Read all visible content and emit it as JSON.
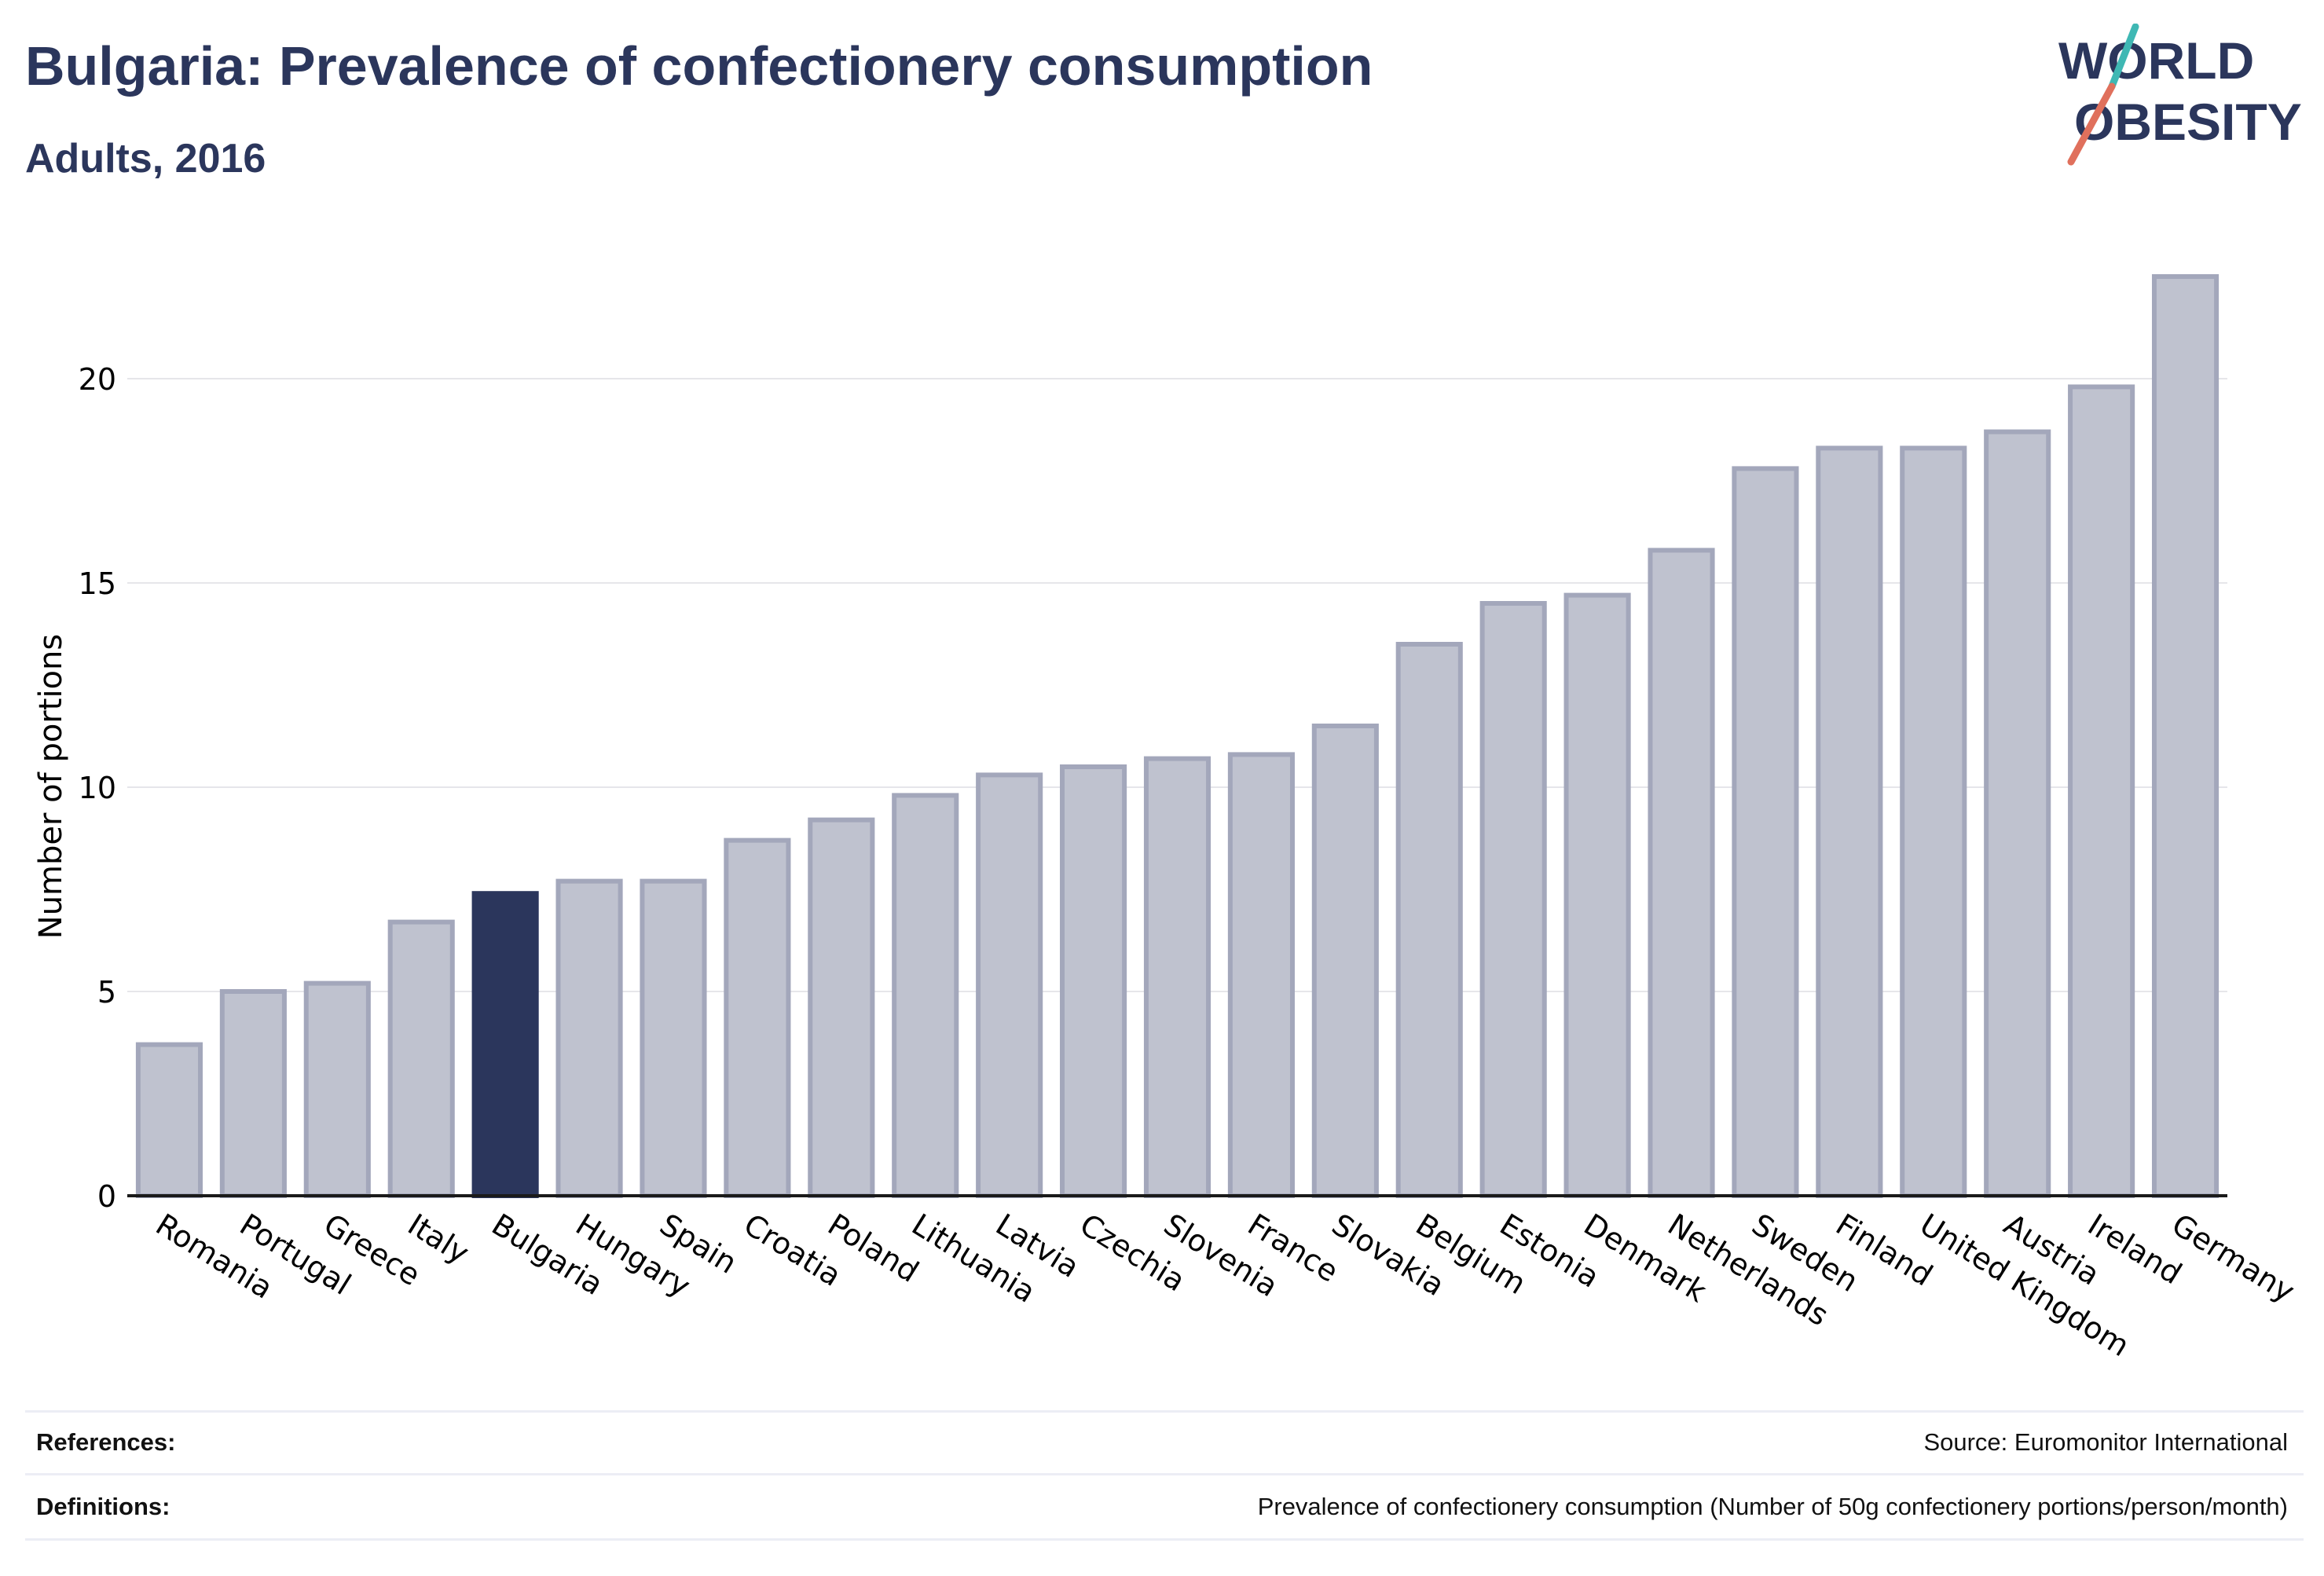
{
  "header": {
    "title": "Bulgaria: Prevalence of confectionery consumption",
    "subtitle": "Adults, 2016"
  },
  "logo": {
    "line1": "WORLD",
    "line2": "OBESITY"
  },
  "colors": {
    "highlight": "#2b365c",
    "bar_fill": "#bfc2cf",
    "bar_stroke": "#a3a7bb",
    "grid": "#e6e6ea",
    "logo_teal": "#3fb8b4",
    "logo_coral": "#e0705c"
  },
  "chart_data": {
    "type": "bar",
    "title": "Bulgaria: Prevalence of confectionery consumption",
    "subtitle": "Adults, 2016",
    "xlabel": "",
    "ylabel": "Number of portions",
    "ylim": [
      0,
      23.5
    ],
    "yticks": [
      0,
      5,
      10,
      15,
      20
    ],
    "grid": true,
    "highlight": "Bulgaria",
    "categories": [
      "Romania",
      "Portugal",
      "Greece",
      "Italy",
      "Bulgaria",
      "Hungary",
      "Spain",
      "Croatia",
      "Poland",
      "Lithuania",
      "Latvia",
      "Czechia",
      "Slovenia",
      "France",
      "Slovakia",
      "Belgium",
      "Estonia",
      "Denmark",
      "Netherlands",
      "Sweden",
      "Finland",
      "United Kingdom",
      "Austria",
      "Ireland",
      "Germany"
    ],
    "values": [
      3.7,
      5.0,
      5.2,
      6.7,
      7.4,
      7.7,
      7.7,
      8.7,
      9.2,
      9.8,
      10.3,
      10.5,
      10.7,
      10.8,
      11.5,
      13.5,
      14.5,
      14.7,
      15.8,
      17.8,
      18.3,
      18.3,
      18.7,
      19.8,
      22.5
    ]
  },
  "footer": {
    "references_label": "References:",
    "references_value": "Source: Euromonitor International",
    "definitions_label": "Definitions:",
    "definitions_value": "Prevalence of confectionery consumption (Number of 50g confectionery portions/person/month)"
  }
}
